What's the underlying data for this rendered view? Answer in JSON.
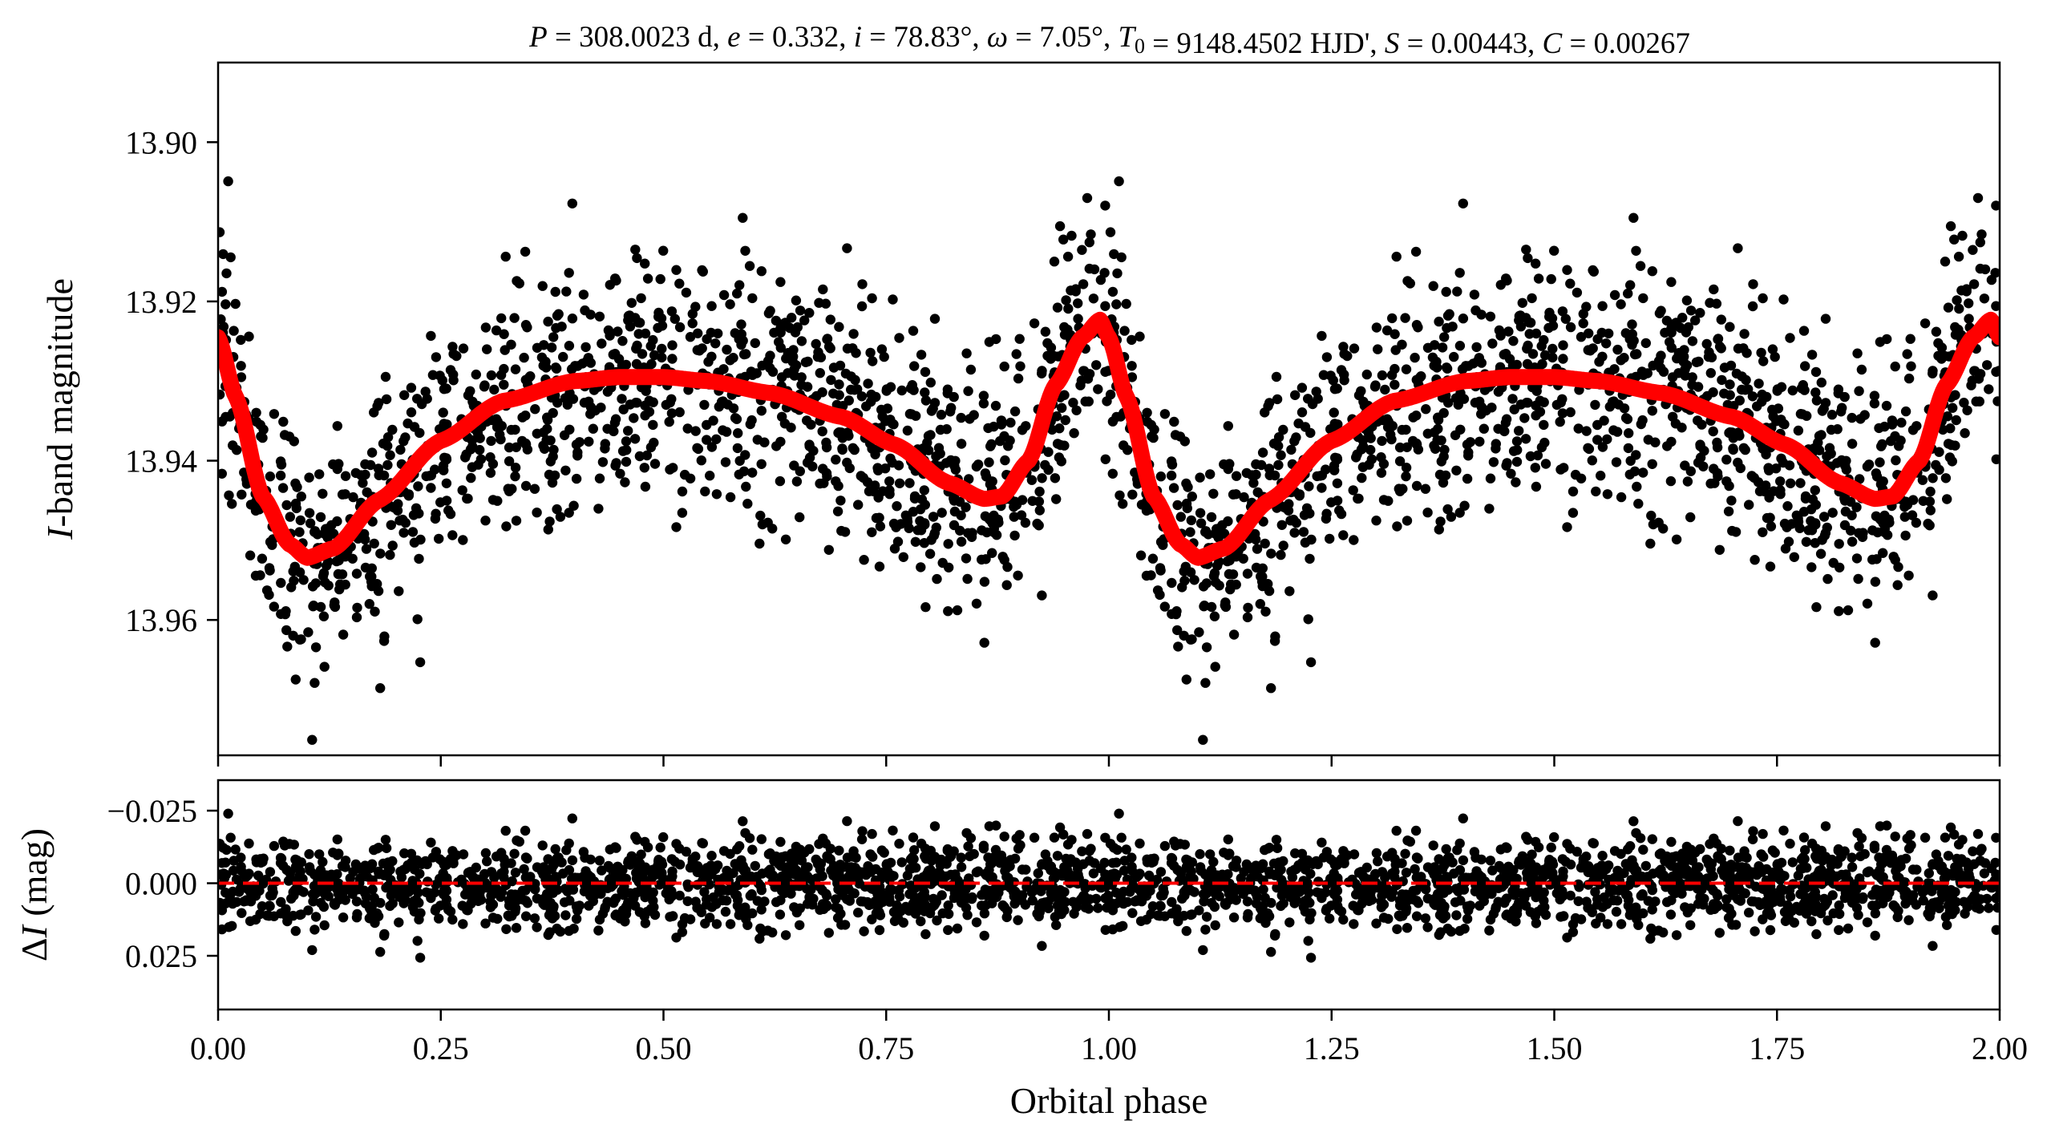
{
  "chart_data": [
    {
      "panel": "light-curve",
      "type": "scatter",
      "title": "P = 308.0023 d, e = 0.332, i = 78.83°, ω = 7.05°, T0 = 9148.4502 HJD', S = 0.00443, C = 0.00267",
      "xlabel": "Orbital phase",
      "ylabel": "I-band magnitude",
      "xlim": [
        0.0,
        2.0
      ],
      "ylim": [
        13.977,
        13.89
      ],
      "y_inverted": true,
      "xticks": [
        "0.00",
        "0.25",
        "0.50",
        "0.75",
        "1.00",
        "1.25",
        "1.50",
        "1.75",
        "2.00"
      ],
      "yticks": [
        13.9,
        13.92,
        13.94,
        13.96
      ],
      "ytick_labels": [
        "13.90",
        "13.92",
        "13.94",
        "13.96"
      ],
      "model_curve": {
        "color": "#ff0000",
        "phase": [
          0.0,
          0.02,
          0.05,
          0.08,
          0.1,
          0.13,
          0.18,
          0.25,
          0.32,
          0.4,
          0.45,
          0.5,
          0.55,
          0.62,
          0.7,
          0.76,
          0.82,
          0.86,
          0.88,
          0.91,
          0.94,
          0.97,
          0.99,
          1.0,
          1.02,
          1.05,
          1.08,
          1.1,
          1.13,
          1.18,
          1.25,
          1.32,
          1.4,
          1.45,
          1.5,
          1.55,
          1.62,
          1.7,
          1.76,
          1.82,
          1.86,
          1.88,
          1.91,
          1.94,
          1.97,
          1.99,
          2.0
        ],
        "magnitude": [
          13.9245,
          13.932,
          13.9445,
          13.9505,
          13.9522,
          13.951,
          13.945,
          13.9375,
          13.9325,
          13.93,
          13.9295,
          13.9295,
          13.93,
          13.9315,
          13.9345,
          13.938,
          13.9428,
          13.9448,
          13.9445,
          13.94,
          13.9305,
          13.9245,
          13.9223,
          13.9245,
          13.932,
          13.9445,
          13.9505,
          13.9522,
          13.951,
          13.945,
          13.9375,
          13.9325,
          13.93,
          13.9295,
          13.9295,
          13.93,
          13.9315,
          13.9345,
          13.938,
          13.9428,
          13.9448,
          13.9445,
          13.94,
          13.9305,
          13.9245,
          13.9223,
          13.9245
        ]
      },
      "observations": {
        "color": "#000000",
        "points_per_cycle": 1300,
        "noise_sigma_mag": 0.0075
      }
    },
    {
      "panel": "residuals",
      "type": "scatter",
      "xlabel": "Orbital phase",
      "ylabel": "ΔI (mag)",
      "xlim": [
        0.0,
        2.0
      ],
      "ylim": [
        0.0435,
        -0.0355
      ],
      "y_inverted": true,
      "xticks": [
        "0.00",
        "0.25",
        "0.50",
        "0.75",
        "1.00",
        "1.25",
        "1.50",
        "1.75",
        "2.00"
      ],
      "yticks": [
        -0.025,
        0.0,
        0.025
      ],
      "ytick_labels": [
        "−0.025",
        "0.000",
        "0.025"
      ],
      "zero_line": {
        "value": 0.0,
        "color": "#ff0000",
        "style": "dashed"
      },
      "residual_sigma_mag": 0.0075
    }
  ]
}
